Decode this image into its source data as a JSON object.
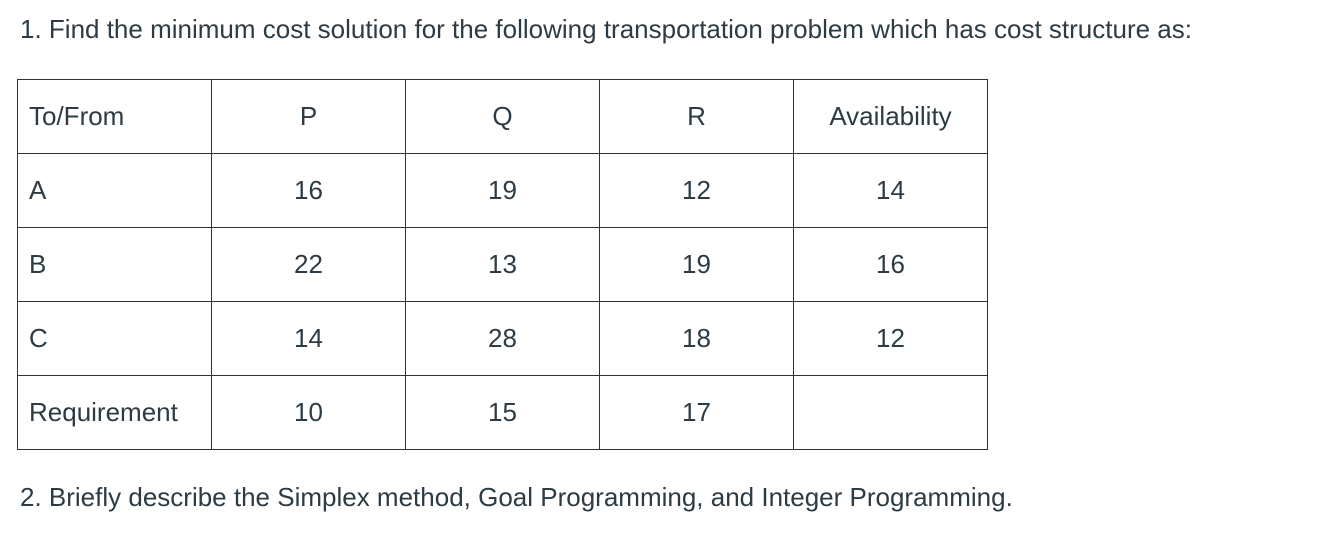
{
  "question1": "1. Find the minimum cost solution for the following transportation problem which has cost structure as:",
  "table": {
    "header": [
      "To/From",
      "P",
      "Q",
      "R",
      "Availability"
    ],
    "rows": [
      [
        "A",
        16,
        19,
        12,
        14
      ],
      [
        "B",
        22,
        13,
        19,
        16
      ],
      [
        "C",
        14,
        28,
        18,
        12
      ],
      [
        "Requirement",
        10,
        15,
        17,
        null
      ]
    ]
  },
  "question2": "2. Briefly describe the Simplex method, Goal Programming, and Integer Programming."
}
